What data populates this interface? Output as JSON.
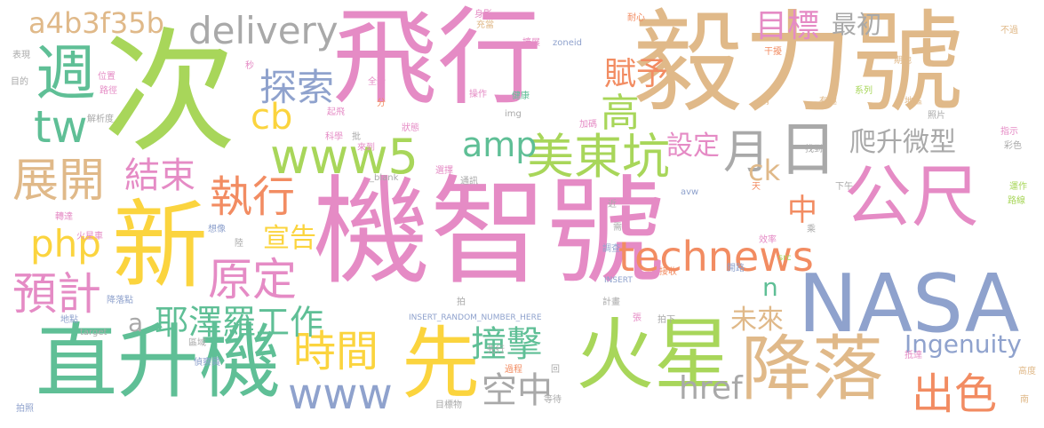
{
  "palette": {
    "pink": "#e58bc5",
    "green": "#a8d65a",
    "tan": "#e0b989",
    "teal": "#5fbf96",
    "yellow": "#fbd43e",
    "blue": "#8fa2cd",
    "orange": "#f28c62",
    "gray": "#a9a9a9"
  },
  "words": [
    {
      "text": "機智號",
      "color": "#e58bc5"
    },
    {
      "text": "飛行",
      "color": "#e58bc5"
    },
    {
      "text": "次",
      "color": "#a8d65a"
    },
    {
      "text": "毅力號",
      "color": "#e0b989"
    },
    {
      "text": "新",
      "color": "#fbd43e"
    },
    {
      "text": "直升機",
      "color": "#5fbf96"
    },
    {
      "text": "週",
      "color": "#5fbf96"
    },
    {
      "text": "NASA",
      "color": "#8fa2cd"
    },
    {
      "text": "火星",
      "color": "#a8d65a"
    },
    {
      "text": "降落",
      "color": "#e0b989"
    },
    {
      "text": "先",
      "color": "#fbd43e"
    },
    {
      "text": "公尺",
      "color": "#e58bc5"
    },
    {
      "text": "日",
      "color": "#a9a9a9"
    },
    {
      "text": "月",
      "color": "#a9a9a9"
    },
    {
      "text": "www5",
      "color": "#a8d65a"
    },
    {
      "text": "美東坑",
      "color": "#a8d65a"
    },
    {
      "text": "technews",
      "color": "#f28c62"
    },
    {
      "text": "原定",
      "color": "#e58bc5"
    },
    {
      "text": "執行",
      "color": "#f28c62"
    },
    {
      "text": "時間",
      "color": "#fbd43e"
    },
    {
      "text": "出色",
      "color": "#f28c62"
    },
    {
      "text": "耶澤羅工作",
      "color": "#5fbf96"
    },
    {
      "text": "展開",
      "color": "#e0b989"
    },
    {
      "text": "預計",
      "color": "#e58bc5"
    },
    {
      "text": "撞擊",
      "color": "#5fbf96"
    },
    {
      "text": "空中",
      "color": "#a9a9a9"
    },
    {
      "text": "www",
      "color": "#8fa2cd"
    },
    {
      "text": "delivery",
      "color": "#a9a9a9"
    },
    {
      "text": "a4b3f35b",
      "color": "#e0b989"
    },
    {
      "text": "tw",
      "color": "#5fbf96"
    },
    {
      "text": "cb",
      "color": "#fbd43e"
    },
    {
      "text": "php",
      "color": "#fbd43e"
    },
    {
      "text": "amp",
      "color": "#5fbf96"
    },
    {
      "text": "探索",
      "color": "#8fa2cd"
    },
    {
      "text": "結束",
      "color": "#e58bc5"
    },
    {
      "text": "高",
      "color": "#a8d65a"
    },
    {
      "text": "賦予",
      "color": "#f28c62"
    },
    {
      "text": "目標",
      "color": "#e58bc5"
    },
    {
      "text": "最初",
      "color": "#a9a9a9"
    },
    {
      "text": "設定",
      "color": "#e58bc5"
    },
    {
      "text": "爬升微型",
      "color": "#a9a9a9"
    },
    {
      "text": "ck",
      "color": "#e0b989"
    },
    {
      "text": "宣告",
      "color": "#fbd43e"
    },
    {
      "text": "中",
      "color": "#f28c62"
    },
    {
      "text": "Ingenuity",
      "color": "#8fa2cd"
    },
    {
      "text": "未來",
      "color": "#e0b989"
    },
    {
      "text": "href",
      "color": "#a9a9a9"
    },
    {
      "text": "a",
      "color": "#a9a9a9"
    },
    {
      "text": "n",
      "color": "#5fbf96"
    },
    {
      "text": "表現",
      "color": "#a9a9a9"
    },
    {
      "text": "目的",
      "color": "#a9a9a9"
    },
    {
      "text": "位置",
      "color": "#e58bc5"
    },
    {
      "text": "路徑",
      "color": "#e58bc5"
    },
    {
      "text": "解析度",
      "color": "#a9a9a9"
    },
    {
      "text": "起飛",
      "color": "#e58bc5"
    },
    {
      "text": "科學",
      "color": "#e58bc5"
    },
    {
      "text": "批",
      "color": "#a9a9a9"
    },
    {
      "text": "全新",
      "color": "#e58bc5"
    },
    {
      "text": "秒",
      "color": "#e58bc5"
    },
    {
      "text": "分",
      "color": "#f28c62"
    },
    {
      "text": "來到",
      "color": "#e58bc5"
    },
    {
      "text": "狀態",
      "color": "#e58bc5"
    },
    {
      "text": "身影",
      "color": "#e58bc5"
    },
    {
      "text": "充當",
      "color": "#e0b989"
    },
    {
      "text": "擴展",
      "color": "#e58bc5"
    },
    {
      "text": "操作",
      "color": "#e58bc5"
    },
    {
      "text": "健康",
      "color": "#5fbf96"
    },
    {
      "text": "加碼",
      "color": "#e58bc5"
    },
    {
      "text": "img",
      "color": "#a9a9a9"
    },
    {
      "text": "zoneid",
      "color": "#8fa2cd"
    },
    {
      "text": "選擇",
      "color": "#e58bc5"
    },
    {
      "text": "通訊",
      "color": "#a9a9a9"
    },
    {
      "text": "_blank",
      "color": "#a9a9a9"
    },
    {
      "text": "近",
      "color": "#a9a9a9"
    },
    {
      "text": "需",
      "color": "#a9a9a9"
    },
    {
      "text": "調查",
      "color": "#8fa2cd"
    },
    {
      "text": "INSERT",
      "color": "#8fa2cd"
    },
    {
      "text": "INSERT_RANDOM_NUMBER_HERE",
      "color": "#8fa2cd"
    },
    {
      "text": "計畫",
      "color": "#a9a9a9"
    },
    {
      "text": "接收",
      "color": "#f28c62"
    },
    {
      "text": "張",
      "color": "#e58bc5"
    },
    {
      "text": "拍下",
      "color": "#a9a9a9"
    },
    {
      "text": "先行",
      "color": "#a9a9a9"
    },
    {
      "text": "過程",
      "color": "#f28c62"
    },
    {
      "text": "回",
      "color": "#a9a9a9"
    },
    {
      "text": "等待",
      "color": "#a9a9a9"
    },
    {
      "text": "目標物",
      "color": "#a9a9a9"
    },
    {
      "text": "偵察員",
      "color": "#8fa2cd"
    },
    {
      "text": "區域",
      "color": "#a9a9a9"
    },
    {
      "text": "拍",
      "color": "#a9a9a9"
    },
    {
      "text": "陸",
      "color": "#a9a9a9"
    },
    {
      "text": "想像",
      "color": "#8fa2cd"
    },
    {
      "text": "火星車",
      "color": "#e58bc5"
    },
    {
      "text": "轉達",
      "color": "#e58bc5"
    },
    {
      "text": "降落點",
      "color": "#8fa2cd"
    },
    {
      "text": "地點",
      "color": "#8fa2cd"
    },
    {
      "text": "target",
      "color": "#a9a9a9"
    },
    {
      "text": "拍照",
      "color": "#8fa2cd"
    },
    {
      "text": "耐心",
      "color": "#f28c62"
    },
    {
      "text": "干擾",
      "color": "#f28c62"
    },
    {
      "text": "不過",
      "color": "#e0b989"
    },
    {
      "text": "期地",
      "color": "#e0b989"
    },
    {
      "text": "系列",
      "color": "#a8d65a"
    },
    {
      "text": "地區",
      "color": "#e0b989"
    },
    {
      "text": "照片",
      "color": "#a9a9a9"
    },
    {
      "text": "指示",
      "color": "#e58bc5"
    },
    {
      "text": "彩色",
      "color": "#a9a9a9"
    },
    {
      "text": "兩",
      "color": "#e0b989"
    },
    {
      "text": "有趣",
      "color": "#e0b989"
    },
    {
      "text": "找到",
      "color": "#a9a9a9"
    },
    {
      "text": "天",
      "color": "#f28c62"
    },
    {
      "text": "下午",
      "color": "#a9a9a9"
    },
    {
      "text": "運作",
      "color": "#a8d65a"
    },
    {
      "text": "路線",
      "color": "#a8d65a"
    },
    {
      "text": "avw",
      "color": "#8fa2cd"
    },
    {
      "text": "效率",
      "color": "#e58bc5"
    },
    {
      "text": "src",
      "color": "#a8d65a"
    },
    {
      "text": "開路",
      "color": "#8fa2cd"
    },
    {
      "text": "乘",
      "color": "#a9a9a9"
    },
    {
      "text": "抵達",
      "color": "#e58bc5"
    },
    {
      "text": "高度",
      "color": "#e0b989"
    },
    {
      "text": "南",
      "color": "#e0b989"
    }
  ]
}
